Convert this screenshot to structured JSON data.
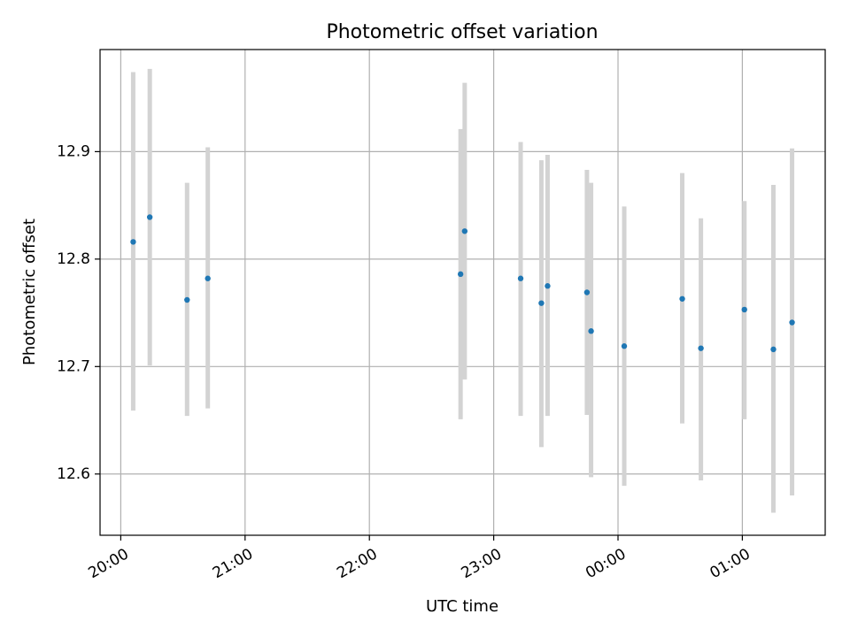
{
  "chart_data": {
    "type": "scatter",
    "title": "Photometric offset variation",
    "xlabel": "UTC time",
    "ylabel": "Photometric offset",
    "x_tick_labels": [
      "20:00",
      "21:00",
      "22:00",
      "23:00",
      "00:00",
      "01:00"
    ],
    "y_tick_labels": [
      "12.6",
      "12.7",
      "12.8",
      "12.9"
    ],
    "x_ticks_time": [
      "20:00",
      "21:00",
      "22:00",
      "23:00",
      "00:00",
      "01:00"
    ],
    "y_ticks": [
      12.6,
      12.7,
      12.8,
      12.9
    ],
    "xlim": [
      "19:50",
      "01:40"
    ],
    "ylim": [
      12.543,
      12.995
    ],
    "grid": true,
    "colors": {
      "point": "#1f77b4",
      "errorbar": "#d3d3d3",
      "grid": "#b0b0b0",
      "axes": "#000000"
    },
    "points": [
      {
        "x": "20:06",
        "y": 12.816,
        "ylow": 12.659,
        "yhigh": 12.974
      },
      {
        "x": "20:14",
        "y": 12.839,
        "ylow": 12.701,
        "yhigh": 12.977
      },
      {
        "x": "20:32",
        "y": 12.762,
        "ylow": 12.654,
        "yhigh": 12.871
      },
      {
        "x": "20:42",
        "y": 12.782,
        "ylow": 12.661,
        "yhigh": 12.904
      },
      {
        "x": "22:44",
        "y": 12.786,
        "ylow": 12.651,
        "yhigh": 12.921
      },
      {
        "x": "22:46",
        "y": 12.826,
        "ylow": 12.688,
        "yhigh": 12.964
      },
      {
        "x": "23:13",
        "y": 12.782,
        "ylow": 12.654,
        "yhigh": 12.909
      },
      {
        "x": "23:23",
        "y": 12.759,
        "ylow": 12.625,
        "yhigh": 12.892
      },
      {
        "x": "23:26",
        "y": 12.775,
        "ylow": 12.654,
        "yhigh": 12.897
      },
      {
        "x": "23:45",
        "y": 12.769,
        "ylow": 12.655,
        "yhigh": 12.883
      },
      {
        "x": "23:47",
        "y": 12.733,
        "ylow": 12.597,
        "yhigh": 12.871
      },
      {
        "x": "00:03",
        "y": 12.719,
        "ylow": 12.589,
        "yhigh": 12.849
      },
      {
        "x": "00:31",
        "y": 12.763,
        "ylow": 12.647,
        "yhigh": 12.88
      },
      {
        "x": "00:40",
        "y": 12.717,
        "ylow": 12.594,
        "yhigh": 12.838
      },
      {
        "x": "01:01",
        "y": 12.753,
        "ylow": 12.651,
        "yhigh": 12.854
      },
      {
        "x": "01:15",
        "y": 12.716,
        "ylow": 12.564,
        "yhigh": 12.869
      },
      {
        "x": "01:24",
        "y": 12.741,
        "ylow": 12.58,
        "yhigh": 12.903
      }
    ]
  }
}
